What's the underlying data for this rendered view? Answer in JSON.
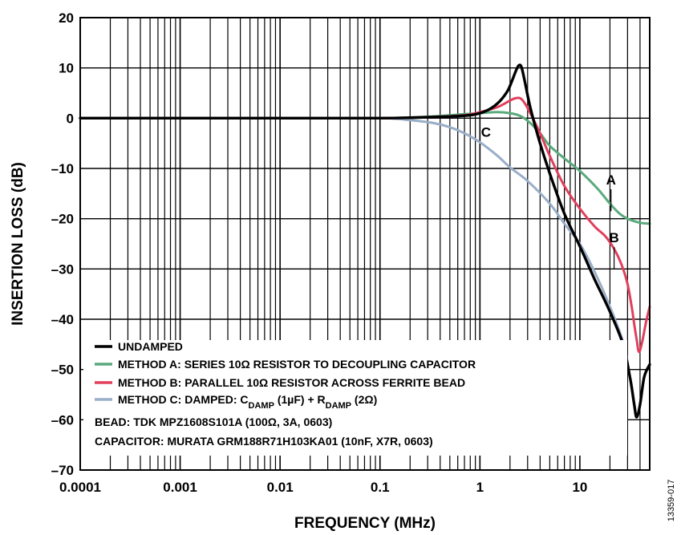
{
  "chart_data": {
    "type": "line",
    "xlabel": "FREQUENCY (MHz)",
    "ylabel": "INSERTION LOSS (dB)",
    "x_scale": "log",
    "xlim": [
      0.0001,
      50
    ],
    "ylim": [
      -70,
      20
    ],
    "grid": true,
    "x_ticks": [
      "0.0001",
      "0.001",
      "0.01",
      "0.1",
      "1",
      "10"
    ],
    "x_tick_values": [
      0.0001,
      0.001,
      0.01,
      0.1,
      1,
      10
    ],
    "y_ticks": [
      "20",
      "10",
      "0",
      "–10",
      "–20",
      "–30",
      "–40",
      "–50",
      "–60",
      "–70"
    ],
    "y_tick_values": [
      20,
      10,
      0,
      -10,
      -20,
      -30,
      -40,
      -50,
      -60,
      -70
    ],
    "colors": {
      "undamped": "#000000",
      "method_a": "#5aaa7c",
      "method_b": "#e0405c",
      "method_c": "#9aaec8"
    },
    "series": [
      {
        "key": "undamped",
        "name": "UNDAMPED",
        "x": [
          0.0001,
          0.001,
          0.01,
          0.1,
          0.3,
          0.7,
          1.0,
          1.3,
          1.6,
          1.9,
          2.1,
          2.3,
          2.45,
          2.6,
          2.8,
          3.2,
          4.0,
          5.0,
          7.0,
          10.0,
          14.0,
          20.0,
          27.0,
          32.0,
          35.0,
          37.0,
          40.0,
          44.0,
          50.0
        ],
        "y": [
          0,
          0,
          0,
          0,
          0.2,
          0.5,
          1.0,
          2.0,
          3.5,
          5.5,
          7.5,
          9.5,
          10.5,
          10.2,
          7.5,
          2.0,
          -5.0,
          -11.0,
          -19.0,
          -25.5,
          -32.0,
          -38.5,
          -45.0,
          -52.0,
          -57.0,
          -59.5,
          -57.0,
          -51.5,
          -49.0
        ]
      },
      {
        "key": "method_a",
        "name": "METHOD A: SERIES 10Ω RESISTOR TO DECOUPLING CAPACITOR",
        "x": [
          0.0001,
          0.001,
          0.01,
          0.1,
          0.3,
          0.7,
          1.0,
          1.5,
          2.0,
          2.5,
          3.0,
          4.0,
          5.0,
          7.0,
          10.0,
          15.0,
          20.0,
          25.0,
          30.0,
          40.0,
          50.0
        ],
        "y": [
          0,
          0,
          0,
          0,
          0.3,
          0.8,
          1.0,
          1.2,
          1.0,
          0.5,
          -0.5,
          -3.0,
          -5.5,
          -8.0,
          -10.5,
          -14.0,
          -17.0,
          -19.0,
          -20.0,
          -20.8,
          -21.0
        ]
      },
      {
        "key": "method_b",
        "name": "METHOD B: PARALLEL 10Ω RESISTOR ACROSS FERRITE BEAD",
        "x": [
          0.0001,
          0.001,
          0.01,
          0.1,
          0.3,
          0.7,
          1.0,
          1.5,
          2.0,
          2.3,
          2.6,
          3.0,
          4.0,
          5.0,
          7.0,
          10.0,
          14.0,
          18.0,
          22.0,
          26.0,
          30.0,
          33.0,
          35.0,
          37.0,
          39.0,
          42.0,
          46.0,
          50.0
        ],
        "y": [
          0,
          0,
          0,
          0,
          0.2,
          0.6,
          1.2,
          2.2,
          3.5,
          4.0,
          3.8,
          2.0,
          -3.0,
          -7.5,
          -13.5,
          -18.0,
          -21.5,
          -23.5,
          -26.0,
          -29.0,
          -33.0,
          -37.5,
          -41.0,
          -44.0,
          -46.5,
          -44.5,
          -40.5,
          -37.5
        ]
      },
      {
        "key": "method_c",
        "name": "METHOD C: DAMPED: C_DAMP (1µF) + R_DAMP (2Ω)",
        "x": [
          0.0001,
          0.001,
          0.01,
          0.1,
          0.2,
          0.35,
          0.5,
          0.7,
          1.0,
          1.5,
          2.0,
          3.0,
          5.0,
          7.0,
          10.0,
          14.0,
          20.0,
          27.0,
          32.0,
          35.0,
          37.0,
          40.0,
          44.0,
          50.0
        ],
        "y": [
          0,
          0,
          0,
          0,
          -0.4,
          -1.0,
          -1.8,
          -3.0,
          -4.8,
          -7.5,
          -9.8,
          -12.5,
          -17.0,
          -21.0,
          -25.0,
          -30.5,
          -37.5,
          -44.5,
          -52.0,
          -57.0,
          -59.5,
          -57.0,
          -51.5,
          -49.0
        ]
      }
    ],
    "legend": {
      "placement": "bottom-left",
      "entries": [
        {
          "key": "undamped",
          "text": "UNDAMPED"
        },
        {
          "key": "method_a",
          "text": "METHOD A: SERIES 10Ω RESISTOR TO DECOUPLING CAPACITOR"
        },
        {
          "key": "method_b",
          "text": "METHOD B: PARALLEL 10Ω RESISTOR ACROSS FERRITE BEAD"
        },
        {
          "key": "method_c",
          "pre": "METHOD C: DAMPED: C",
          "sub1": "DAMP",
          "mid": " (1µF) + R",
          "sub2": "DAMP",
          "post": " (2Ω)"
        }
      ],
      "notes": [
        "BEAD: TDK MPZ1608S101A (100Ω, 3A, 0603)",
        "CAPACITOR: MURATA GRM188R71H103KA01 (10nF, X7R, 0603)"
      ]
    },
    "annotations": [
      {
        "text": "A",
        "x": 20.5,
        "y": -13.5,
        "leader_to": [
          20.5,
          -18.5
        ]
      },
      {
        "text": "B",
        "x": 22.0,
        "y": -25.0,
        "leader_to": [
          22.0,
          -30.0
        ]
      },
      {
        "text": "C",
        "x": 1.15,
        "y": -4.0,
        "leader_to": null
      }
    ],
    "figure_id": "13359-017"
  }
}
